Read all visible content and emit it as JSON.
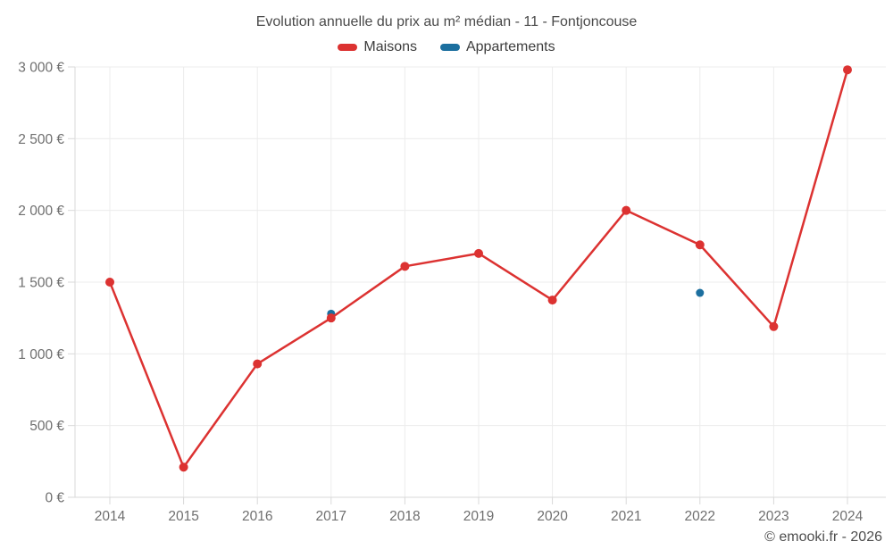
{
  "title": "Evolution annuelle du prix au m² médian - 11 - Fontjoncouse",
  "legend": {
    "items": [
      {
        "label": "Maisons",
        "series": "maisons"
      },
      {
        "label": "Appartements",
        "series": "appartements"
      }
    ]
  },
  "footer": {
    "copyright": "© emooki.fr - 2026"
  },
  "colors": {
    "maisons": "#dc3231",
    "appartements": "#1c6f9f",
    "grid": "#ececec",
    "axis": "#d9d9d9",
    "axis_label": "#6f6f6f",
    "title_text": "#4a4a4a",
    "legend_text": "#3d3d3d",
    "copyright_text": "#4e4e4e",
    "background": "#ffffff"
  },
  "chart_data": {
    "type": "line",
    "title": "Evolution annuelle du prix au m² médian - 11 - Fontjoncouse",
    "x_labels": [
      "2014",
      "2015",
      "2016",
      "2017",
      "2018",
      "2019",
      "2020",
      "2021",
      "2022",
      "2023",
      "2024"
    ],
    "series": [
      {
        "name": "Maisons",
        "key": "maisons",
        "type": "line",
        "color": "#dc3231",
        "values": [
          1500,
          210,
          930,
          1250,
          1610,
          1700,
          1375,
          2000,
          1760,
          1190,
          2980
        ]
      },
      {
        "name": "Appartements",
        "key": "appartements",
        "type": "scatter",
        "color": "#1c6f9f",
        "values": [
          null,
          null,
          null,
          1280,
          null,
          null,
          null,
          null,
          1425,
          null,
          null
        ]
      }
    ],
    "ylim": [
      0,
      3000
    ],
    "ytick_step": 500,
    "ytick_labels": [
      "0 €",
      "500 €",
      "1 000 €",
      "1 500 €",
      "2 000 €",
      "2 500 €",
      "3 000 €"
    ],
    "xlabel": "",
    "ylabel": "",
    "grid": true,
    "legend_position": "top"
  }
}
